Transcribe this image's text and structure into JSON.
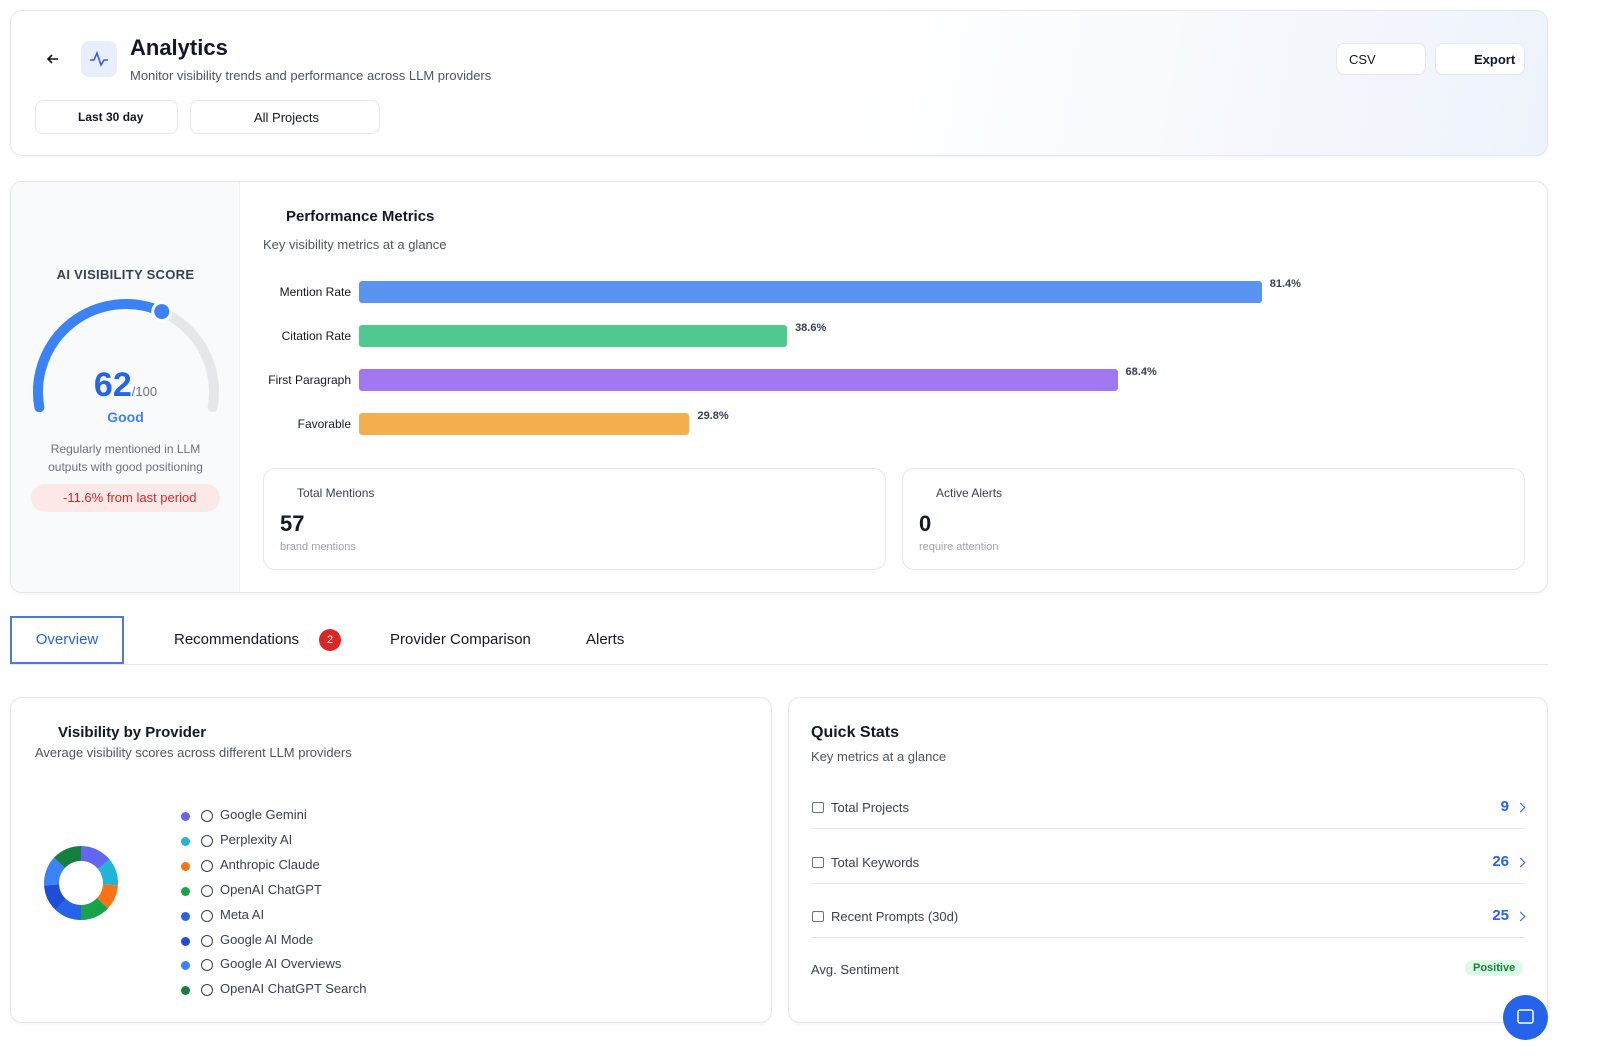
{
  "header": {
    "title": "Analytics",
    "subtitle": "Monitor visibility trends and performance across LLM providers",
    "date_filter": "Last 30 day",
    "project_filter": "All Projects",
    "format": "CSV",
    "export": "Export"
  },
  "score": {
    "label": "AI VISIBILITY SCORE",
    "value": 62,
    "max": {
      "value": 100,
      "label": "/100"
    },
    "rating": "Good",
    "description": "Regularly mentioned in LLM outputs with good positioning",
    "change": {
      "value": -11.6,
      "label": "-11.6% from last period"
    }
  },
  "performance": {
    "title": "Performance Metrics",
    "subtitle": "Key visibility metrics at a glance",
    "type": "bar",
    "categories": [
      "Mention Rate",
      "Citation Rate",
      "First Paragraph",
      "Favorable"
    ],
    "values": [
      81.4,
      38.6,
      68.4,
      29.8
    ],
    "value_labels": [
      "81.4%",
      "38.6%",
      "68.4%",
      "29.8%"
    ],
    "colors": [
      "#5b93f0",
      "#4fc98f",
      "#a177f2",
      "#f5b04e"
    ],
    "xlim": [
      0,
      100
    ]
  },
  "cards": [
    {
      "label": "Total Mentions",
      "value": 57,
      "sub": "brand mentions"
    },
    {
      "label": "Active Alerts",
      "value": 0,
      "sub": "require attention"
    }
  ],
  "tabs": {
    "items": [
      "Overview",
      "Recommendations",
      "Provider Comparison",
      "Alerts"
    ],
    "badge": 2
  },
  "providers": {
    "title": "Visibility by Provider",
    "subtitle": "Average visibility scores across different LLM providers",
    "type": "pie",
    "names": [
      "Google Gemini",
      "Perplexity AI",
      "Anthropic Claude",
      "OpenAI ChatGPT",
      "Meta AI",
      "Google AI Mode",
      "Google AI Overviews",
      "OpenAI ChatGPT Search"
    ],
    "values": [
      14,
      12,
      11,
      13,
      12,
      12,
      13,
      13
    ],
    "colors": [
      "#6366f1",
      "#22b5d8",
      "#f97316",
      "#16a34a",
      "#2563eb",
      "#1d4ed8",
      "#3b82f6",
      "#15803d"
    ]
  },
  "quick_stats": {
    "title": "Quick Stats",
    "subtitle": "Key metrics at a glance",
    "rows": [
      {
        "label": "Total Projects",
        "value": 9
      },
      {
        "label": "Total Keywords",
        "value": 26
      },
      {
        "label": "Recent Prompts (30d)",
        "value": 25
      }
    ],
    "sentiment": {
      "label": "Avg. Sentiment",
      "value": "Positive"
    }
  }
}
